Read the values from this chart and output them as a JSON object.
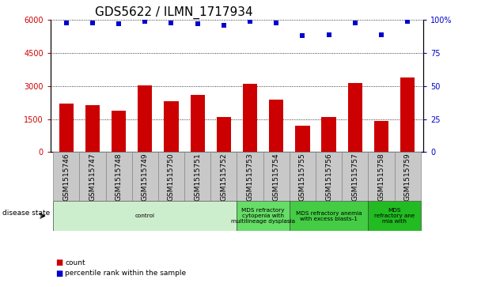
{
  "title": "GDS5622 / ILMN_1717934",
  "samples": [
    "GSM1515746",
    "GSM1515747",
    "GSM1515748",
    "GSM1515749",
    "GSM1515750",
    "GSM1515751",
    "GSM1515752",
    "GSM1515753",
    "GSM1515754",
    "GSM1515755",
    "GSM1515756",
    "GSM1515757",
    "GSM1515758",
    "GSM1515759"
  ],
  "counts": [
    2200,
    2150,
    1900,
    3050,
    2300,
    2600,
    1600,
    3100,
    2400,
    1200,
    1600,
    3150,
    1400,
    3400
  ],
  "percentile_ranks": [
    98,
    98,
    97,
    99,
    98,
    97,
    96,
    99,
    98,
    88,
    89,
    98,
    89,
    99
  ],
  "bar_color": "#cc0000",
  "dot_color": "#0000cc",
  "ylim_left": [
    0,
    6000
  ],
  "ylim_right": [
    0,
    100
  ],
  "yticks_left": [
    0,
    1500,
    3000,
    4500,
    6000
  ],
  "yticks_right": [
    0,
    25,
    50,
    75,
    100
  ],
  "disease_groups": [
    {
      "label": "control",
      "start": 0,
      "end": 7,
      "color": "#cceecc"
    },
    {
      "label": "MDS refractory\ncytopenia with\nmultilineage dysplasia",
      "start": 7,
      "end": 9,
      "color": "#66dd66"
    },
    {
      "label": "MDS refractory anemia\nwith excess blasts-1",
      "start": 9,
      "end": 12,
      "color": "#44cc44"
    },
    {
      "label": "MDS\nrefractory ane\nmia with",
      "start": 12,
      "end": 14,
      "color": "#22bb22"
    }
  ],
  "legend_count_label": "count",
  "legend_percentile_label": "percentile rank within the sample",
  "disease_state_label": "disease state",
  "title_fontsize": 11,
  "tick_fontsize": 6.5,
  "bar_width": 0.55,
  "background_color": "#ffffff"
}
